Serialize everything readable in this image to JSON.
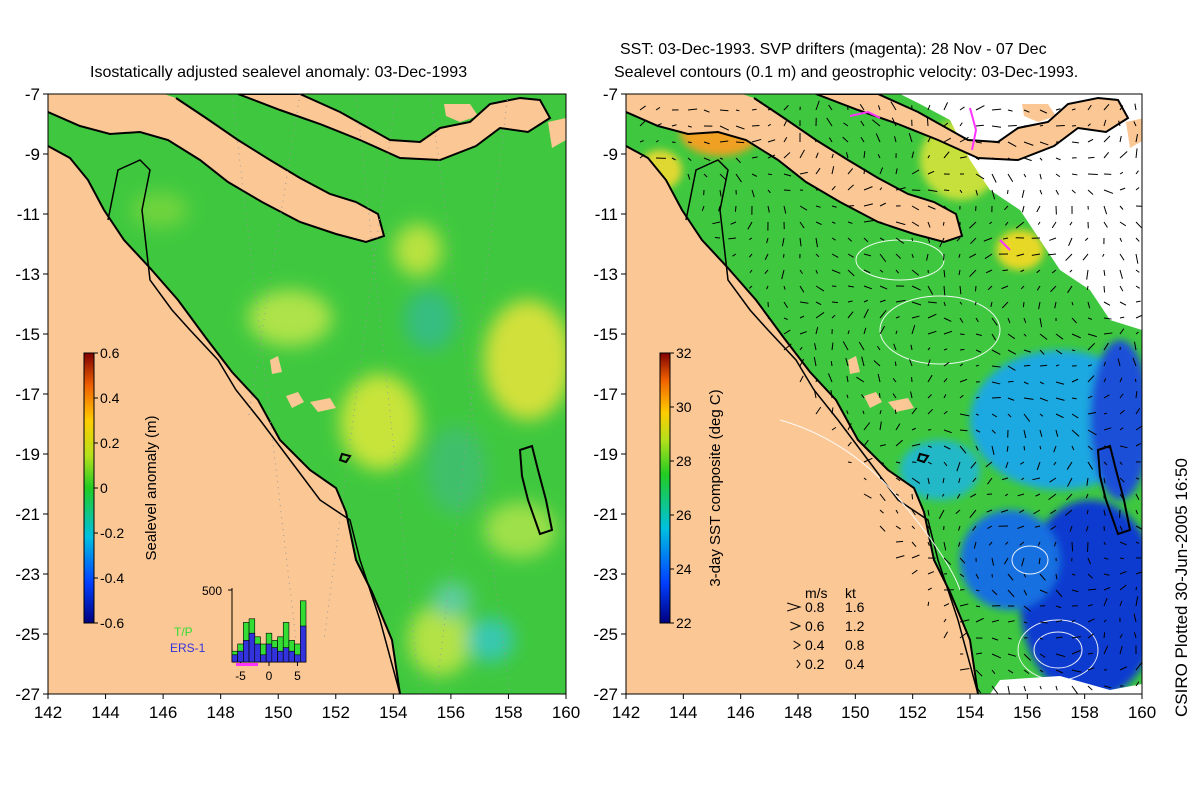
{
  "left_panel": {
    "title": "Isostatically adjusted sealevel anomaly: 03-Dec-1993",
    "colorbar": {
      "label": "Sealevel anomaly (m)",
      "ticks": [
        "0.6",
        "0.4",
        "0.2",
        "0",
        "-0.2",
        "-0.4",
        "-0.6"
      ],
      "range": [
        -0.6,
        0.6
      ]
    },
    "histogram": {
      "y_tick": "500",
      "x_ticks": [
        "-5",
        "0",
        "5"
      ],
      "legend": [
        {
          "label": "T/P",
          "color": "#33dd33"
        },
        {
          "label": "ERS-1",
          "color": "#3333dd"
        }
      ],
      "bins_tp": [
        0.15,
        0.25,
        0.55,
        0.6,
        0.35,
        0.25,
        0.4,
        0.3,
        0.35,
        0.55,
        0.3,
        0.25,
        0.85
      ],
      "bins_ers": [
        0.1,
        0.15,
        0.3,
        0.4,
        0.25,
        0.1,
        0.25,
        0.2,
        0.15,
        0.2,
        0.15,
        0.1,
        0.5
      ]
    }
  },
  "right_panel": {
    "title_line1": "SST: 03-Dec-1993. SVP drifters (magenta): 28 Nov - 07 Dec",
    "title_line2": "Sealevel contours (0.1 m) and geostrophic velocity: 03-Dec-1993.",
    "colorbar": {
      "label": "3-day SST composite (deg C)",
      "ticks": [
        "32",
        "30",
        "28",
        "26",
        "24",
        "22"
      ],
      "range": [
        22,
        32
      ]
    },
    "velocity_legend": {
      "header_ms": "m/s",
      "header_kt": "kt",
      "rows": [
        {
          "ms": "0.8",
          "kt": "1.6"
        },
        {
          "ms": "0.6",
          "kt": "1.2"
        },
        {
          "ms": "0.4",
          "kt": "0.8"
        },
        {
          "ms": "0.2",
          "kt": "0.4"
        }
      ]
    }
  },
  "axes": {
    "lat_ticks": [
      "-7",
      "-9",
      "-11",
      "-13",
      "-15",
      "-17",
      "-19",
      "-21",
      "-23",
      "-25",
      "-27"
    ],
    "lon_ticks": [
      "142",
      "144",
      "146",
      "148",
      "150",
      "152",
      "154",
      "156",
      "158",
      "160"
    ],
    "lat_range": [
      -27,
      -7
    ],
    "lon_range": [
      142,
      160
    ]
  },
  "credit": "CSIRO Plotted 30-Jun-2005 16:50",
  "colors": {
    "land": "#fbc795",
    "ocean_green": "#3fc83f",
    "cloud": "#ffffff"
  }
}
